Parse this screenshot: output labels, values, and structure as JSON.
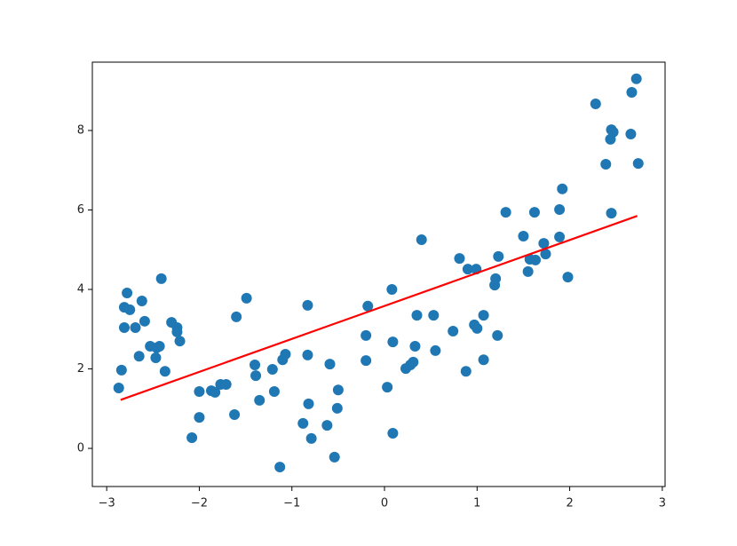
{
  "chart_data": {
    "type": "scatter",
    "xlim": [
      -3.155,
      3.03
    ],
    "ylim": [
      -0.96,
      9.72
    ],
    "xticks": [
      {
        "value": -3,
        "label": "−3"
      },
      {
        "value": -2,
        "label": "−2"
      },
      {
        "value": -1,
        "label": "−1"
      },
      0,
      1,
      2,
      3
    ],
    "yticks": [
      0,
      2,
      4,
      6,
      8
    ],
    "series": [
      {
        "type": "scatter",
        "color": "#1f77b4",
        "x": [
          -2.87,
          -2.84,
          -2.81,
          -2.81,
          -2.78,
          -2.75,
          -2.69,
          -2.65,
          -2.62,
          -2.59,
          -2.53,
          -2.47,
          -2.46,
          -2.43,
          -2.41,
          -2.37,
          -2.3,
          -2.24,
          -2.24,
          -2.21,
          -2.08,
          -2.0,
          -2.0,
          -1.87,
          -1.83,
          -1.77,
          -1.71,
          -1.62,
          -1.6,
          -1.49,
          -1.4,
          -1.39,
          -1.35,
          -1.21,
          -1.19,
          -1.13,
          -1.1,
          -1.07,
          -0.88,
          -0.83,
          -0.83,
          -0.82,
          -0.79,
          -0.62,
          -0.59,
          -0.54,
          -0.51,
          -0.5,
          -0.2,
          -0.2,
          -0.18,
          0.03,
          0.08,
          0.09,
          0.09,
          0.23,
          0.28,
          0.31,
          0.33,
          0.35,
          0.4,
          0.53,
          0.55,
          0.74,
          0.81,
          0.88,
          0.9,
          0.97,
          0.99,
          1.0,
          1.07,
          1.07,
          1.19,
          1.2,
          1.22,
          1.23,
          1.31,
          1.5,
          1.55,
          1.57,
          1.62,
          1.63,
          1.72,
          1.74,
          1.89,
          1.89,
          1.92,
          1.98,
          2.28,
          2.39,
          2.44,
          2.45,
          2.45,
          2.47,
          2.66,
          2.67,
          2.72,
          2.74
        ],
        "values": [
          1.52,
          1.97,
          3.04,
          3.55,
          3.91,
          3.49,
          3.04,
          2.32,
          3.71,
          3.2,
          2.57,
          2.28,
          2.53,
          2.57,
          4.27,
          1.94,
          3.17,
          3.04,
          2.93,
          2.7,
          0.27,
          1.43,
          0.78,
          1.45,
          1.41,
          1.61,
          1.61,
          0.85,
          3.31,
          3.78,
          2.1,
          1.83,
          1.21,
          1.99,
          1.43,
          -0.47,
          2.23,
          2.37,
          0.63,
          3.6,
          2.35,
          1.12,
          0.25,
          0.58,
          2.12,
          -0.22,
          1.01,
          1.47,
          2.84,
          2.21,
          3.58,
          1.54,
          4.0,
          0.38,
          2.68,
          2.01,
          2.1,
          2.17,
          2.57,
          3.35,
          5.25,
          3.35,
          2.46,
          2.95,
          4.78,
          1.94,
          4.51,
          3.11,
          4.51,
          3.02,
          3.35,
          2.23,
          4.11,
          4.27,
          2.84,
          4.83,
          5.94,
          5.34,
          4.45,
          4.76,
          5.94,
          4.74,
          5.16,
          4.89,
          6.01,
          5.32,
          6.53,
          4.31,
          8.67,
          7.15,
          7.78,
          5.92,
          8.02,
          7.96,
          7.91,
          8.96,
          9.3,
          7.17
        ]
      },
      {
        "type": "line",
        "color": "#ff0000",
        "x": [
          -2.85,
          2.73
        ],
        "values": [
          1.22,
          5.85
        ]
      }
    ]
  }
}
